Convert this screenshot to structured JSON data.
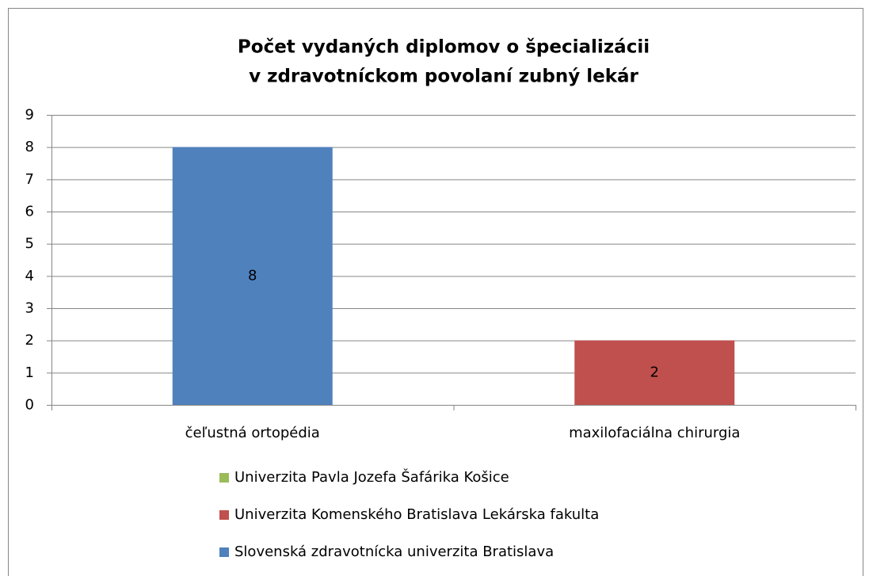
{
  "chart_data": {
    "type": "stacked_bar",
    "title": [
      "Počet vydaných diplomov o špecializácii",
      "v zdravotníckom povolaní zubný lekár"
    ],
    "categories": [
      "čeľustná ortopédia",
      "maxilofaciálna chirurgia"
    ],
    "series": [
      {
        "name": "Slovenská zdravotnícka univerzita Bratislava",
        "color": "#4f81bd",
        "values": [
          8,
          null
        ]
      },
      {
        "name": "Univerzita Komenského Bratislava Lekárska fakulta",
        "color": "#c0504d",
        "values": [
          null,
          2
        ]
      },
      {
        "name": "Univerzita Pavla Jozefa Šafárika Košice",
        "color": "#9bbb59",
        "values": [
          null,
          null
        ]
      }
    ],
    "ylim": [
      0,
      9
    ],
    "yticks": [
      0,
      1,
      2,
      3,
      4,
      5,
      6,
      7,
      8,
      9
    ],
    "grid": true,
    "legend": "bottom"
  }
}
